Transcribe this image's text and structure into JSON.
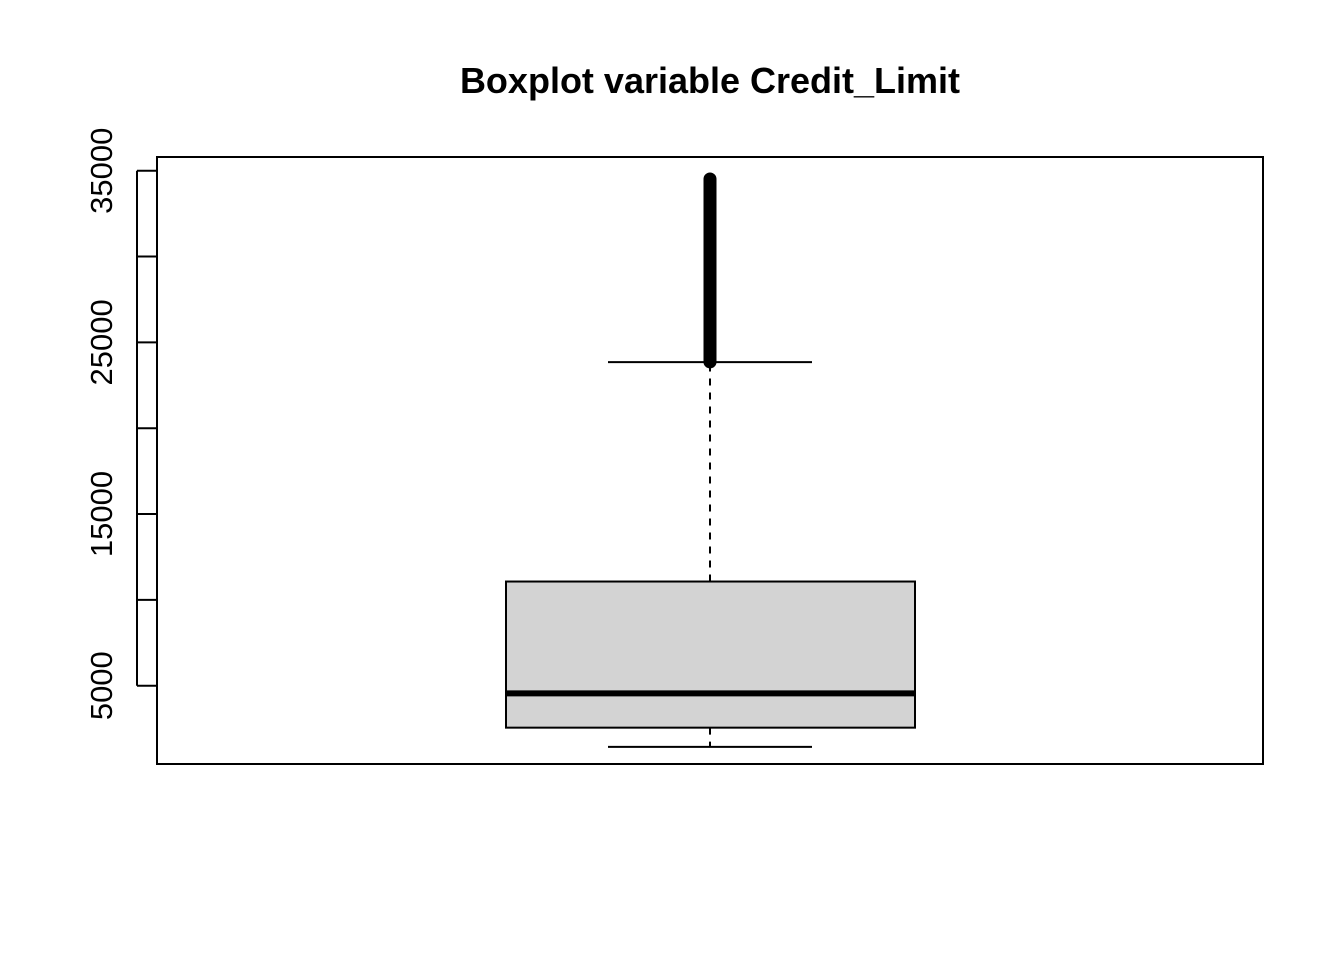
{
  "chart_data": {
    "type": "boxplot",
    "title": "Boxplot variable Credit_Limit",
    "xlabel": "",
    "ylabel": "",
    "ylim": [
      438,
      35799
    ],
    "y_ticks": [
      5000,
      10000,
      15000,
      20000,
      25000,
      30000,
      35000
    ],
    "y_tick_labels": [
      "5000",
      "",
      "15000",
      "",
      "25000",
      "",
      "35000"
    ],
    "box": {
      "whisker_low": 1438,
      "q1": 2555,
      "median": 4549,
      "q3": 11068,
      "whisker_high": 23848
    },
    "outliers": {
      "min": 23860,
      "max": 34516,
      "note_dense": true
    },
    "colors": {
      "box_fill": "#d3d3d3",
      "stroke": "#000000",
      "background": "#ffffff"
    },
    "grid": false,
    "legend": "none"
  }
}
